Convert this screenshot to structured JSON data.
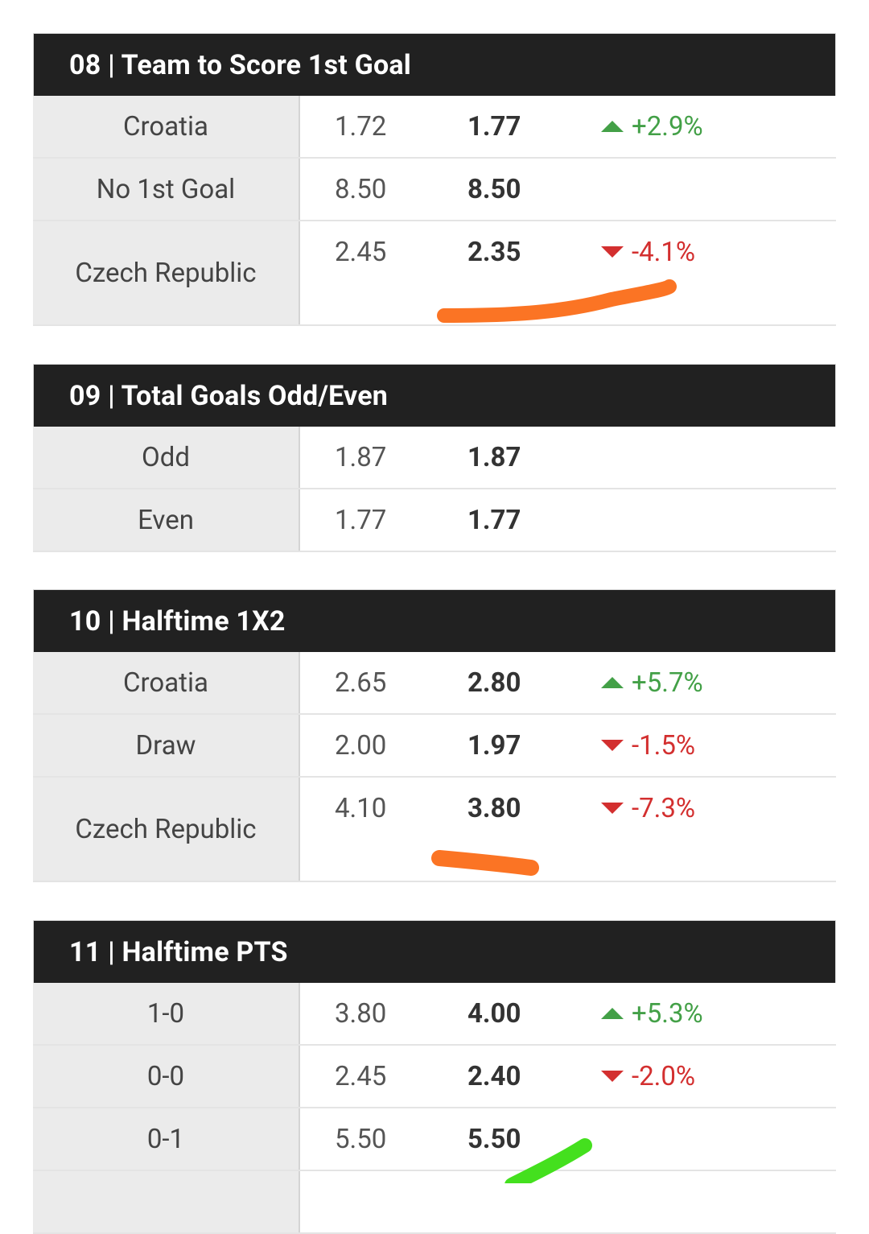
{
  "markets": [
    {
      "title": "08 | Team to Score 1st Goal",
      "rows": [
        {
          "name": "Croatia",
          "old": "1.72",
          "new": "1.77",
          "dir": "up",
          "change": "+2.9%"
        },
        {
          "name": "No 1st Goal",
          "old": "8.50",
          "new": "8.50",
          "dir": "",
          "change": ""
        },
        {
          "name": "Czech Republic",
          "old": "2.45",
          "new": "2.35",
          "dir": "down",
          "change": "-4.1%"
        }
      ]
    },
    {
      "title": "09 | Total Goals Odd/Even",
      "rows": [
        {
          "name": "Odd",
          "old": "1.87",
          "new": "1.87",
          "dir": "",
          "change": ""
        },
        {
          "name": "Even",
          "old": "1.77",
          "new": "1.77",
          "dir": "",
          "change": ""
        }
      ]
    },
    {
      "title": "10 | Halftime 1X2",
      "rows": [
        {
          "name": "Croatia",
          "old": "2.65",
          "new": "2.80",
          "dir": "up",
          "change": "+5.7%"
        },
        {
          "name": "Draw",
          "old": "2.00",
          "new": "1.97",
          "dir": "down",
          "change": "-1.5%"
        },
        {
          "name": "Czech Republic",
          "old": "4.10",
          "new": "3.80",
          "dir": "down",
          "change": "-7.3%"
        }
      ]
    },
    {
      "title": "11 | Halftime PTS",
      "rows": [
        {
          "name": "1-0",
          "old": "3.80",
          "new": "4.00",
          "dir": "up",
          "change": "+5.3%"
        },
        {
          "name": "0-0",
          "old": "2.45",
          "new": "2.40",
          "dir": "down",
          "change": "-2.0%"
        },
        {
          "name": "0-1",
          "old": "5.50",
          "new": "5.50",
          "dir": "",
          "change": ""
        },
        {
          "name": "",
          "old": "",
          "new": "",
          "dir": "",
          "change": ""
        }
      ]
    }
  ],
  "colors": {
    "header_bg": "#212121",
    "up": "#43a047",
    "down": "#d32f2f",
    "annotation_orange": "#fb7424",
    "annotation_green": "#44e01e"
  }
}
